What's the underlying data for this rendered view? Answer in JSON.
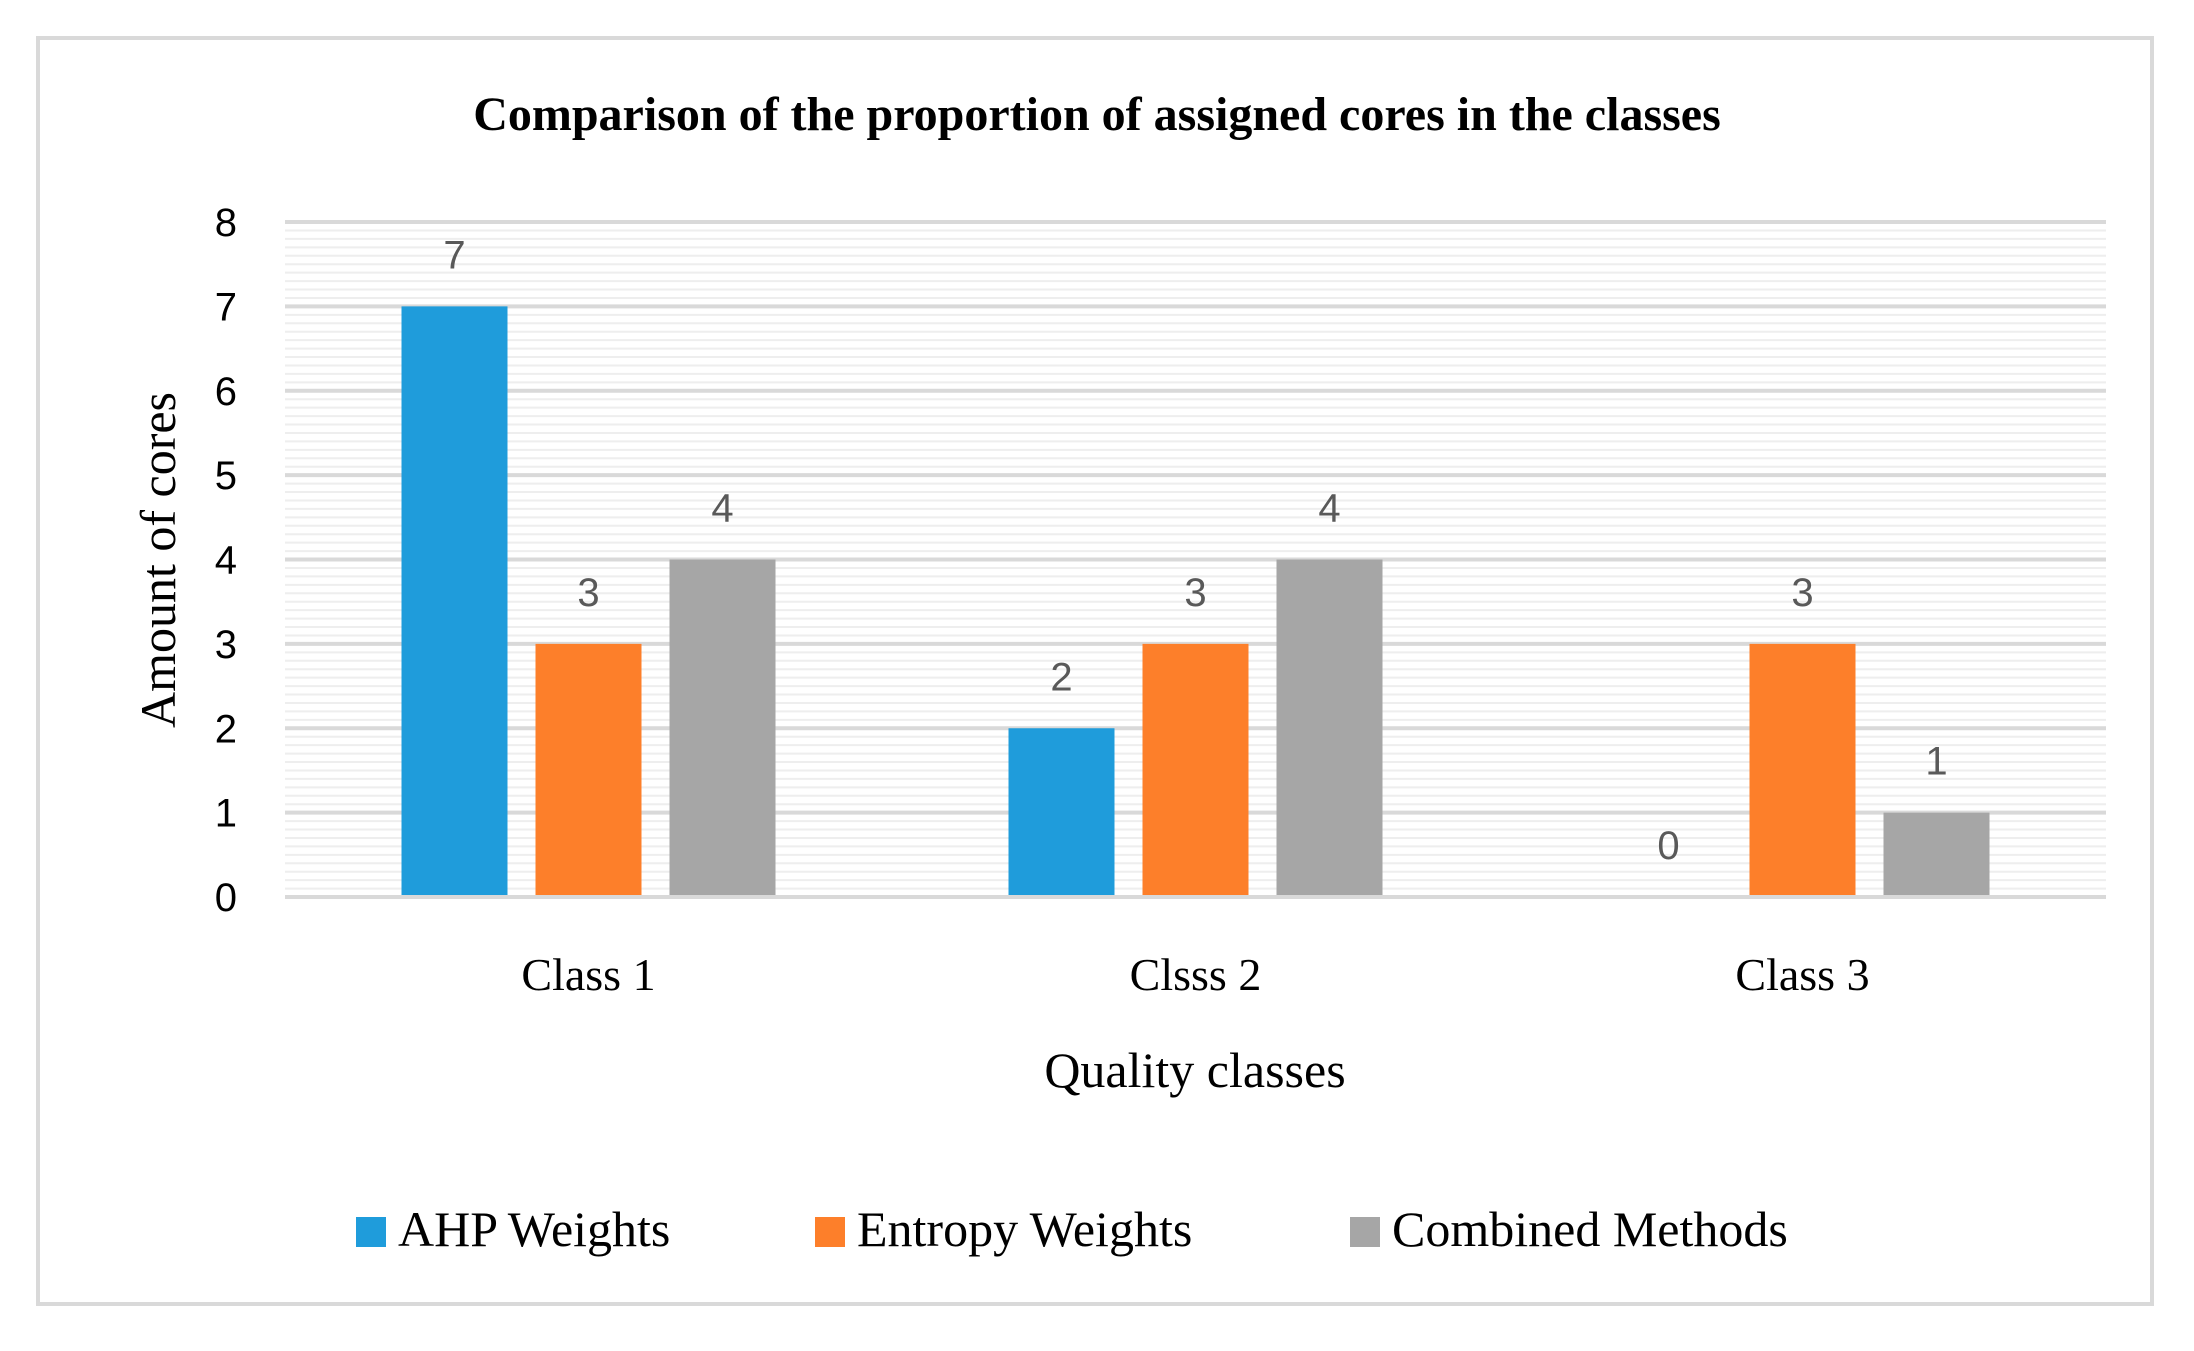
{
  "chart_data": {
    "type": "bar",
    "title": "Comparison of the proportion of assigned cores  in the classes",
    "xlabel": "Quality classes",
    "ylabel": "Amount of cores",
    "categories": [
      "Class 1",
      "Clsss 2",
      "Class 3"
    ],
    "series": [
      {
        "name": "AHP Weights",
        "values": [
          7,
          2,
          0
        ],
        "color": "#1f9cdb"
      },
      {
        "name": "Entropy Weights",
        "values": [
          3,
          3,
          3
        ],
        "color": "#fd7f2a"
      },
      {
        "name": "Combined Methods",
        "values": [
          4,
          4,
          1
        ],
        "color": "#a6a6a6"
      }
    ],
    "ylim": [
      0,
      8
    ],
    "yticks": [
      0,
      1,
      2,
      3,
      4,
      5,
      6,
      7,
      8
    ],
    "grid": true,
    "legend_position": "bottom",
    "data_labels": true
  }
}
